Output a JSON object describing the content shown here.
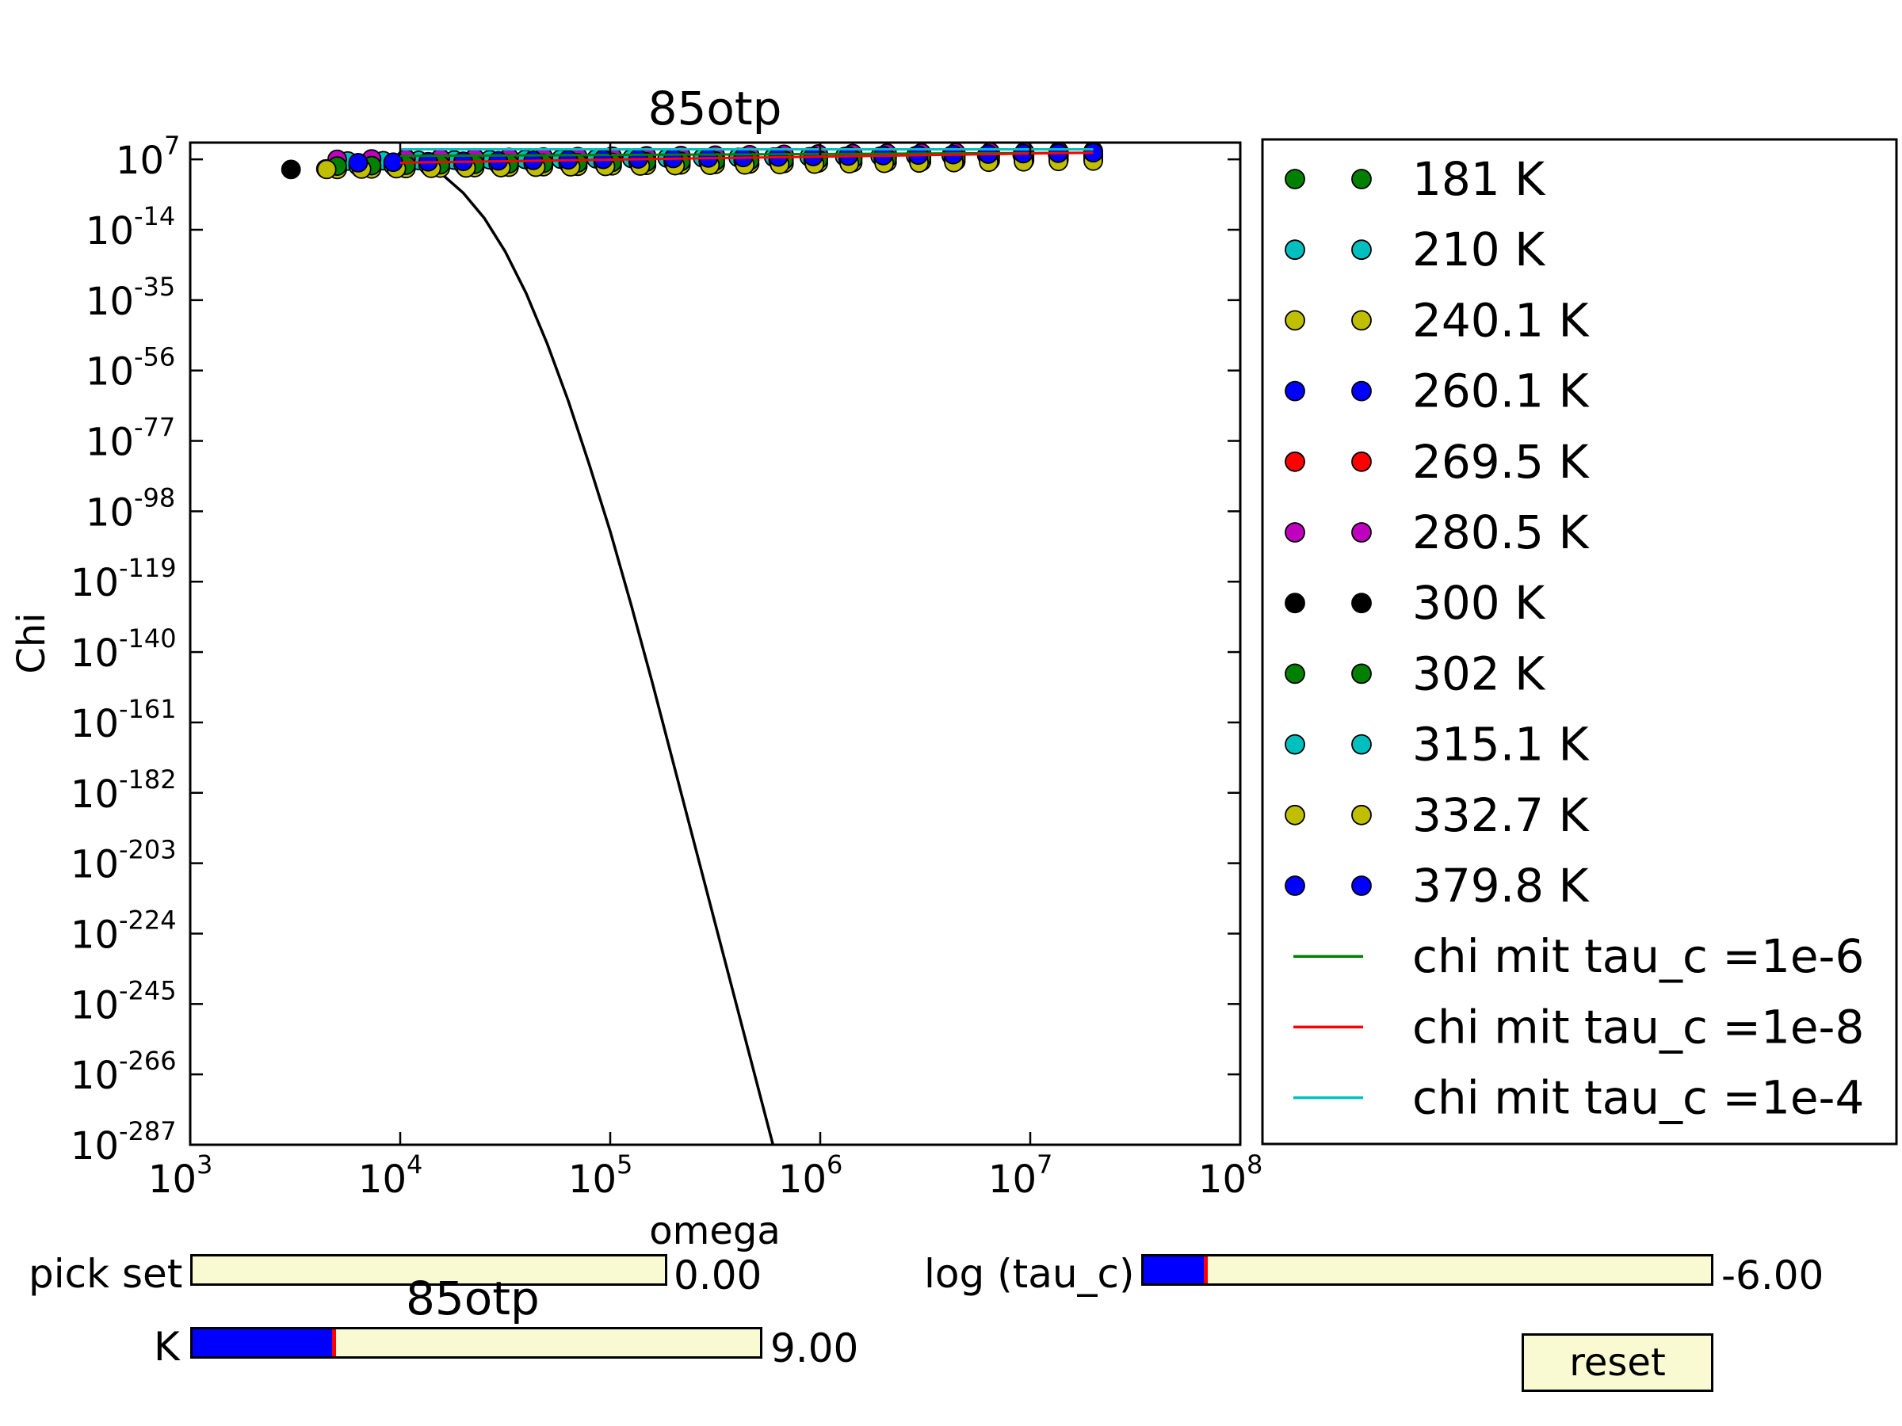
{
  "chart_data": {
    "type": "scatter",
    "title": "85otp",
    "xlabel": "omega",
    "ylabel": "Chi",
    "x_scale": "log",
    "y_scale": "log",
    "xlim": [
      1000,
      100000000
    ],
    "ylim_log10": [
      -287,
      12
    ],
    "x_ticks": [
      {
        "exp": 3,
        "label_base": "10",
        "label_exp": "3"
      },
      {
        "exp": 4,
        "label_base": "10",
        "label_exp": "4"
      },
      {
        "exp": 5,
        "label_base": "10",
        "label_exp": "5"
      },
      {
        "exp": 6,
        "label_base": "10",
        "label_exp": "6"
      },
      {
        "exp": 7,
        "label_base": "10",
        "label_exp": "7"
      },
      {
        "exp": 8,
        "label_base": "10",
        "label_exp": "8"
      }
    ],
    "y_ticks": [
      {
        "exp": 7,
        "label_base": "10",
        "label_exp": "7"
      },
      {
        "exp": -14,
        "label_base": "10",
        "label_exp": "-14"
      },
      {
        "exp": -35,
        "label_base": "10",
        "label_exp": "-35"
      },
      {
        "exp": -56,
        "label_base": "10",
        "label_exp": "-56"
      },
      {
        "exp": -77,
        "label_base": "10",
        "label_exp": "-77"
      },
      {
        "exp": -98,
        "label_base": "10",
        "label_exp": "-98"
      },
      {
        "exp": -119,
        "label_base": "10",
        "label_exp": "-119"
      },
      {
        "exp": -140,
        "label_base": "10",
        "label_exp": "-140"
      },
      {
        "exp": -161,
        "label_base": "10",
        "label_exp": "-161"
      },
      {
        "exp": -182,
        "label_base": "10",
        "label_exp": "-182"
      },
      {
        "exp": -203,
        "label_base": "10",
        "label_exp": "-203"
      },
      {
        "exp": -224,
        "label_base": "10",
        "label_exp": "-224"
      },
      {
        "exp": -245,
        "label_base": "10",
        "label_exp": "-245"
      },
      {
        "exp": -266,
        "label_base": "10",
        "label_exp": "-266"
      },
      {
        "exp": -287,
        "label_base": "10",
        "label_exp": "-287"
      }
    ],
    "grid": false,
    "legend_position": "right-outside",
    "scatter_series": [
      {
        "name": "181 K",
        "color": "#008000",
        "x_log10_range": [
          3.7,
          7.3
        ],
        "log10_chi_range": [
          6.5,
          8.5
        ]
      },
      {
        "name": "210 K",
        "color": "#00bfbf",
        "x_log10_range": [
          3.75,
          7.3
        ],
        "log10_chi_range": [
          6.5,
          8.5
        ]
      },
      {
        "name": "240.1 K",
        "color": "#bfbf00",
        "x_log10_range": [
          3.7,
          7.3
        ],
        "log10_chi_range": [
          4.0,
          7.0
        ]
      },
      {
        "name": "260.1 K",
        "color": "#0000ff",
        "x_log10_range": [
          3.85,
          7.3
        ],
        "log10_chi_range": [
          6.0,
          9.0
        ]
      },
      {
        "name": "269.5 K",
        "color": "#ff0000",
        "x_log10_range": [
          4.0,
          7.3
        ],
        "log10_chi_range": [
          5.0,
          8.0
        ]
      },
      {
        "name": "280.5 K",
        "color": "#bf00bf",
        "x_log10_range": [
          3.7,
          7.3
        ],
        "log10_chi_range": [
          7.0,
          9.5
        ]
      },
      {
        "name": "300 K",
        "color": "#000000",
        "x_log10_range": [
          3.48,
          7.3
        ],
        "log10_chi_range": [
          4.0,
          7.0
        ]
      },
      {
        "name": "302 K",
        "color": "#008000",
        "x_log10_range": [
          3.7,
          7.3
        ],
        "log10_chi_range": [
          5.0,
          8.0
        ]
      },
      {
        "name": "315.1 K",
        "color": "#00bfbf",
        "x_log10_range": [
          3.8,
          7.3
        ],
        "log10_chi_range": [
          5.0,
          8.0
        ]
      },
      {
        "name": "332.7 K",
        "color": "#bfbf00",
        "x_log10_range": [
          3.65,
          7.3
        ],
        "log10_chi_range": [
          4.0,
          6.5
        ]
      },
      {
        "name": "379.8 K",
        "color": "#0000ff",
        "x_log10_range": [
          3.8,
          7.3
        ],
        "log10_chi_range": [
          6.0,
          9.0
        ]
      }
    ],
    "line_series": [
      {
        "name": "chi mit tau_c =1e-6",
        "color": "#008000",
        "points": [
          [
            4.0,
            8.0
          ],
          [
            7.3,
            9.0
          ]
        ]
      },
      {
        "name": "chi mit tau_c =1e-8",
        "color": "#ff0000",
        "points": [
          [
            4.0,
            6.0
          ],
          [
            7.3,
            9.0
          ]
        ]
      },
      {
        "name": "chi mit tau_c =1e-4",
        "color": "#00bfbf",
        "points": [
          [
            4.0,
            10.0
          ],
          [
            7.3,
            10.0
          ]
        ]
      }
    ],
    "unlabeled_line": {
      "color": "#000000",
      "points": [
        [
          4.0,
          6.8
        ],
        [
          4.1,
          6.0
        ],
        [
          4.2,
          2.5
        ],
        [
          4.3,
          -3.0
        ],
        [
          4.4,
          -10.5
        ],
        [
          4.5,
          -20.5
        ],
        [
          4.6,
          -33.0
        ],
        [
          4.7,
          -48.0
        ],
        [
          4.8,
          -65.0
        ],
        [
          4.9,
          -84.0
        ],
        [
          5.0,
          -104.0
        ],
        [
          5.1,
          -126.0
        ],
        [
          5.2,
          -149.0
        ],
        [
          5.5,
          -221.0
        ],
        [
          5.8,
          -293.0
        ],
        [
          6.0,
          -340.0
        ]
      ]
    }
  },
  "controls": {
    "pick_set": {
      "label": "pick set",
      "value": "0.00",
      "fraction": 0.0
    },
    "k": {
      "label": "K",
      "value": "9.00",
      "fraction": 0.25
    },
    "log_tau_c": {
      "label": "log (tau_c)",
      "value": "-6.00",
      "fraction": 0.11
    },
    "reset": {
      "label": "reset"
    },
    "overlay_title": "85otp"
  }
}
